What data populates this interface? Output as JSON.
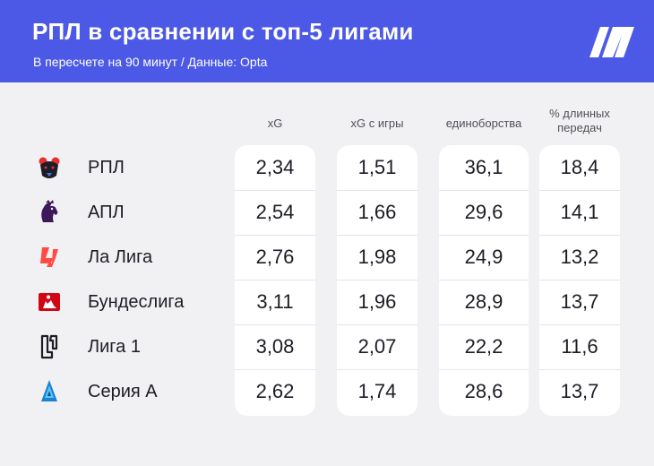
{
  "header": {
    "title": "РПЛ в сравнении с топ-5 лигами",
    "subtitle": "В пересчете на 90 минут / Данные: Opta",
    "logo_icon": "brand-logo-icon",
    "background_color": "#4b59e6"
  },
  "chart_data": {
    "type": "table",
    "columns": [
      "xG",
      "xG с игры",
      "единоборства",
      "% длинных передач"
    ],
    "rows": [
      {
        "name": "РПЛ",
        "icon": "rpl-bear-icon",
        "values": [
          "2,34",
          "1,51",
          "36,1",
          "18,4"
        ]
      },
      {
        "name": "АПЛ",
        "icon": "epl-lion-icon",
        "values": [
          "2,54",
          "1,66",
          "29,6",
          "14,1"
        ]
      },
      {
        "name": "Ла Лига",
        "icon": "laliga-icon",
        "values": [
          "2,76",
          "1,98",
          "24,9",
          "13,2"
        ]
      },
      {
        "name": "Бундеслига",
        "icon": "bundesliga-icon",
        "values": [
          "3,11",
          "1,96",
          "28,9",
          "13,7"
        ]
      },
      {
        "name": "Лига 1",
        "icon": "ligue1-icon",
        "values": [
          "3,08",
          "2,07",
          "22,2",
          "11,6"
        ]
      },
      {
        "name": "Серия А",
        "icon": "serie-a-icon",
        "values": [
          "2,62",
          "1,74",
          "28,6",
          "13,7"
        ]
      }
    ]
  }
}
